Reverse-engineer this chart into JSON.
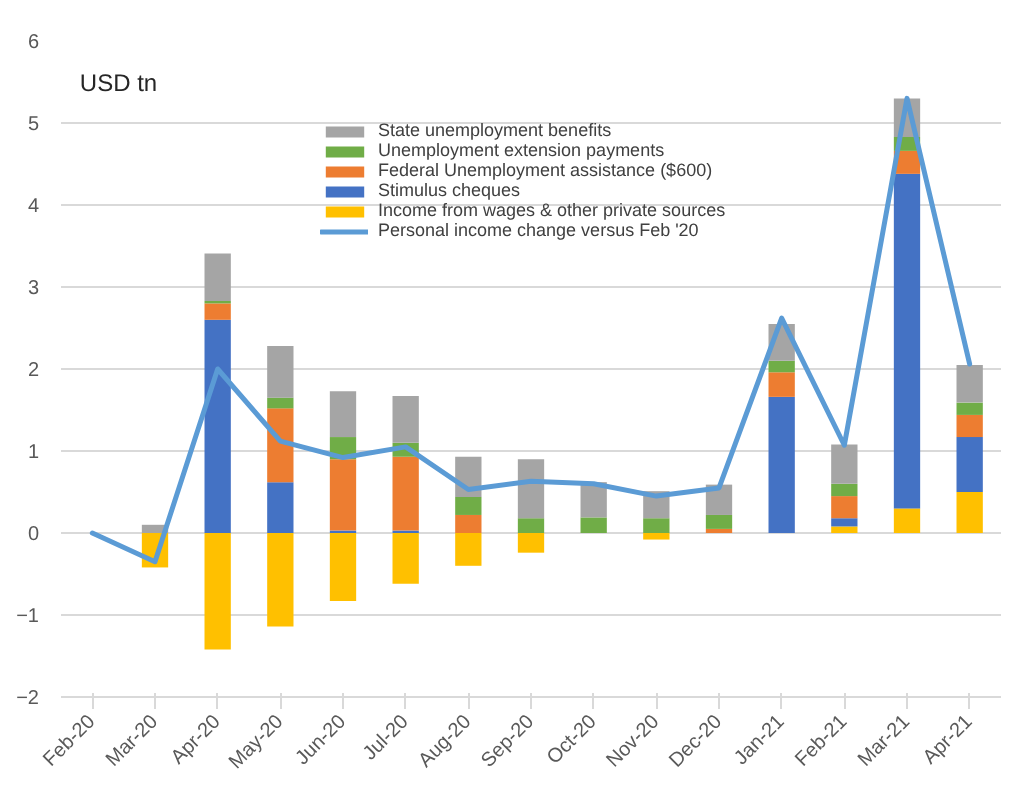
{
  "chart_data": {
    "type": "bar",
    "stacked": true,
    "ylabel": "USD tn",
    "categories": [
      "Feb-20",
      "Mar-20",
      "Apr-20",
      "May-20",
      "Jun-20",
      "Jul-20",
      "Aug-20",
      "Sep-20",
      "Oct-20",
      "Nov-20",
      "Dec-20",
      "Jan-21",
      "Feb-21",
      "Mar-21",
      "Apr-21"
    ],
    "series": [
      {
        "name": "Income from wages & other private sources",
        "color": "#ffc000",
        "values": [
          0,
          -0.42,
          -1.42,
          -1.14,
          -0.83,
          -0.62,
          -0.4,
          -0.24,
          0,
          -0.08,
          0,
          0,
          0.08,
          0.3,
          0.5
        ]
      },
      {
        "name": "Stimulus cheques",
        "color": "#4472c4",
        "values": [
          0,
          0,
          2.6,
          0.62,
          0.03,
          0.03,
          0,
          0,
          0,
          0,
          0,
          1.66,
          0.1,
          4.08,
          0.67
        ]
      },
      {
        "name": "Federal Unemployment assistance ($600)",
        "color": "#ed7d31",
        "values": [
          0,
          0,
          0.2,
          0.9,
          0.87,
          0.9,
          0.22,
          0,
          0,
          0,
          0.05,
          0.3,
          0.27,
          0.28,
          0.27
        ]
      },
      {
        "name": "Unemployment extension payments",
        "color": "#70ad47",
        "values": [
          0,
          0,
          0.03,
          0.13,
          0.27,
          0.17,
          0.22,
          0.18,
          0.19,
          0.18,
          0.17,
          0.14,
          0.15,
          0.17,
          0.15
        ]
      },
      {
        "name": "State unemployment benefits",
        "color": "#a5a5a5",
        "values": [
          0,
          0.1,
          0.58,
          0.63,
          0.56,
          0.57,
          0.49,
          0.72,
          0.43,
          0.33,
          0.37,
          0.45,
          0.48,
          0.47,
          0.46
        ]
      },
      {
        "name": "Personal income change versus Feb '20",
        "type": "line",
        "color": "#5b9bd5",
        "values": [
          0,
          -0.35,
          2.0,
          1.12,
          0.92,
          1.05,
          0.53,
          0.63,
          0.6,
          0.45,
          0.55,
          2.62,
          1.07,
          5.3,
          2.06
        ]
      }
    ],
    "ylim": [
      -2,
      6
    ],
    "yticks": [
      -2,
      -1,
      0,
      1,
      2,
      3,
      4,
      5,
      6
    ],
    "grid": "y",
    "legend": "top right",
    "line_style": "solid",
    "marker": "none"
  }
}
